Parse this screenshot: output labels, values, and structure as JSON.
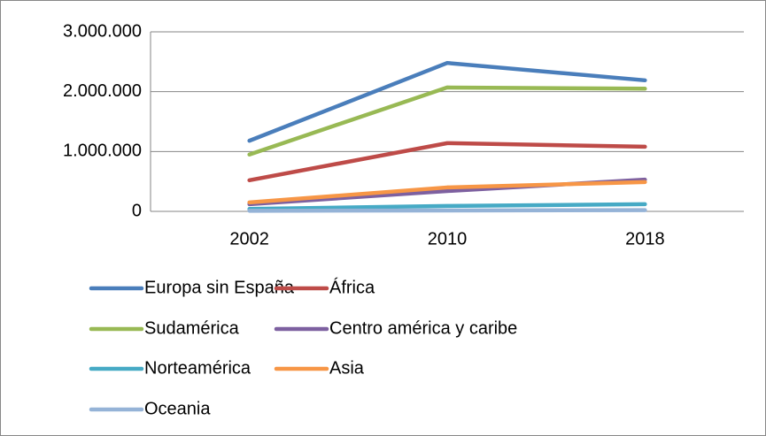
{
  "chart_data": {
    "type": "line",
    "categories": [
      "2002",
      "2010",
      "2018"
    ],
    "series": [
      {
        "name": "Europa sin España",
        "color": "#4a7ebb",
        "values": [
          1180000,
          2480000,
          2190000
        ]
      },
      {
        "name": "África",
        "color": "#be4b48",
        "values": [
          520000,
          1140000,
          1080000
        ]
      },
      {
        "name": "Sudamérica",
        "color": "#98b954",
        "values": [
          950000,
          2070000,
          2050000
        ]
      },
      {
        "name": "Centro américa y caribe",
        "color": "#7d60a0",
        "values": [
          120000,
          340000,
          530000
        ]
      },
      {
        "name": "Norteamérica",
        "color": "#46aac5",
        "values": [
          40000,
          90000,
          120000
        ]
      },
      {
        "name": "Asia",
        "color": "#f79646",
        "values": [
          150000,
          400000,
          490000
        ]
      },
      {
        "name": "Oceania",
        "color": "#95b3d7",
        "values": [
          10000,
          15000,
          20000
        ]
      }
    ],
    "ylim": [
      0,
      3000000
    ],
    "yticks": [
      0,
      {
        "value": 1000000,
        "label": "1.000.000"
      },
      {
        "value": 2000000,
        "label": "2.000.000"
      },
      {
        "value": 3000000,
        "label": "3.000.000"
      }
    ],
    "grid": true
  }
}
